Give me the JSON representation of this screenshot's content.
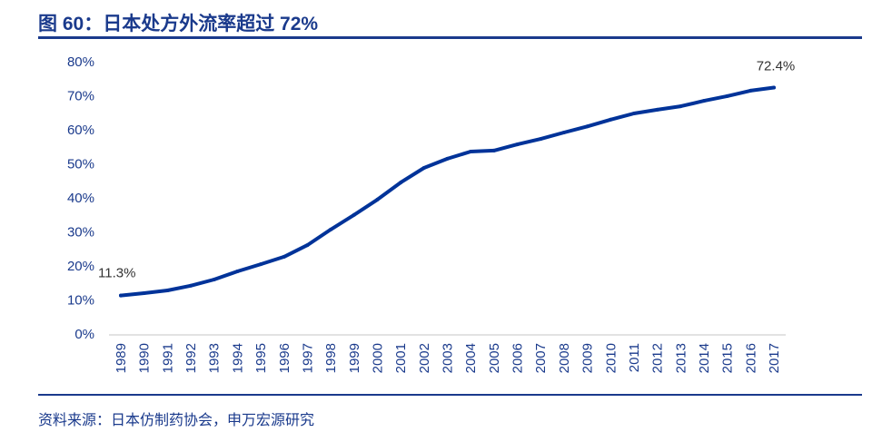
{
  "title": "图 60：日本处方外流率超过 72%",
  "source": "资料来源：日本仿制药协会，申万宏源研究",
  "colors": {
    "line": "#003399",
    "text": "#1a3a8c",
    "axis": "#d9d9d9"
  },
  "chart_data": {
    "type": "line",
    "title": "",
    "xlabel": "",
    "ylabel": "",
    "x": [
      1989,
      1990,
      1991,
      1992,
      1993,
      1994,
      1995,
      1996,
      1997,
      1998,
      1999,
      2000,
      2001,
      2002,
      2003,
      2004,
      2005,
      2006,
      2007,
      2008,
      2009,
      2010,
      2011,
      2012,
      2013,
      2014,
      2015,
      2016,
      2017
    ],
    "series": [
      {
        "values": [
          11.3,
          12.0,
          12.8,
          14.2,
          16.0,
          18.4,
          20.5,
          22.7,
          26.1,
          30.7,
          35.0,
          39.5,
          44.5,
          48.8,
          51.5,
          53.6,
          53.9,
          55.7,
          57.3,
          59.2,
          61.0,
          63.0,
          64.8,
          65.9,
          66.9,
          68.5,
          69.9,
          71.5,
          72.4
        ]
      }
    ],
    "ylim": [
      0,
      80
    ],
    "yticks": [
      "0%",
      "10%",
      "20%",
      "30%",
      "40%",
      "50%",
      "60%",
      "70%",
      "80%"
    ],
    "data_labels": [
      {
        "x": 1989,
        "text": "11.3%"
      },
      {
        "x": 2017,
        "text": "72.4%"
      }
    ],
    "grid": false,
    "legend": "none"
  }
}
